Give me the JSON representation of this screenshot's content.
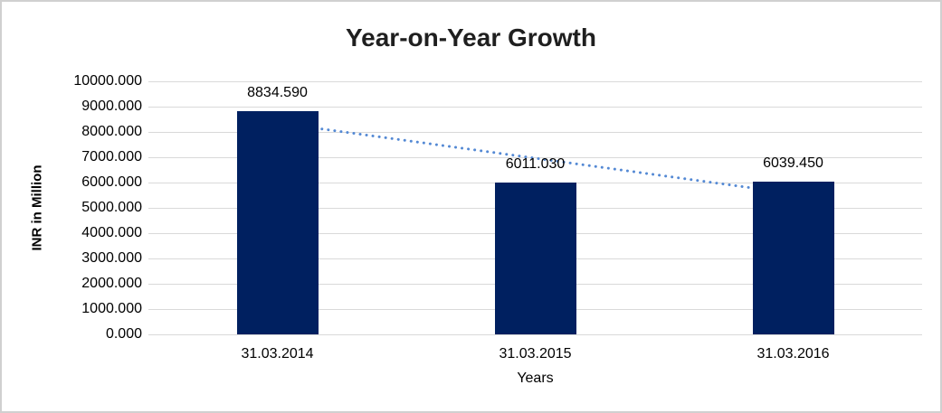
{
  "chart_data": {
    "type": "bar",
    "title": "Year-on-Year Growth",
    "categories": [
      "31.03.2014",
      "31.03.2015",
      "31.03.2016"
    ],
    "values": [
      8834.59,
      6011.03,
      6039.45
    ],
    "data_labels": [
      "8834.590",
      "6011.030",
      "6039.450"
    ],
    "xlabel": "Years",
    "ylabel": "INR in Million",
    "ylim": [
      0,
      10000
    ],
    "ytick_step": 1000,
    "ytick_labels": [
      "0.000",
      "1000.000",
      "2000.000",
      "3000.000",
      "4000.000",
      "5000.000",
      "6000.000",
      "7000.000",
      "8000.000",
      "9000.000",
      "10000.000"
    ],
    "grid": "horizontal",
    "legend": "none",
    "colors": {
      "bar": "#002060",
      "trendline": "#5489d4",
      "gridline": "#d9d9d9",
      "text": "#000000",
      "title_text": "#1f1f1f",
      "border": "#d0d0d0"
    },
    "trendline": {
      "type": "linear",
      "style": "dotted",
      "endpoint_values": [
        8359.257,
        5564.123
      ]
    }
  }
}
